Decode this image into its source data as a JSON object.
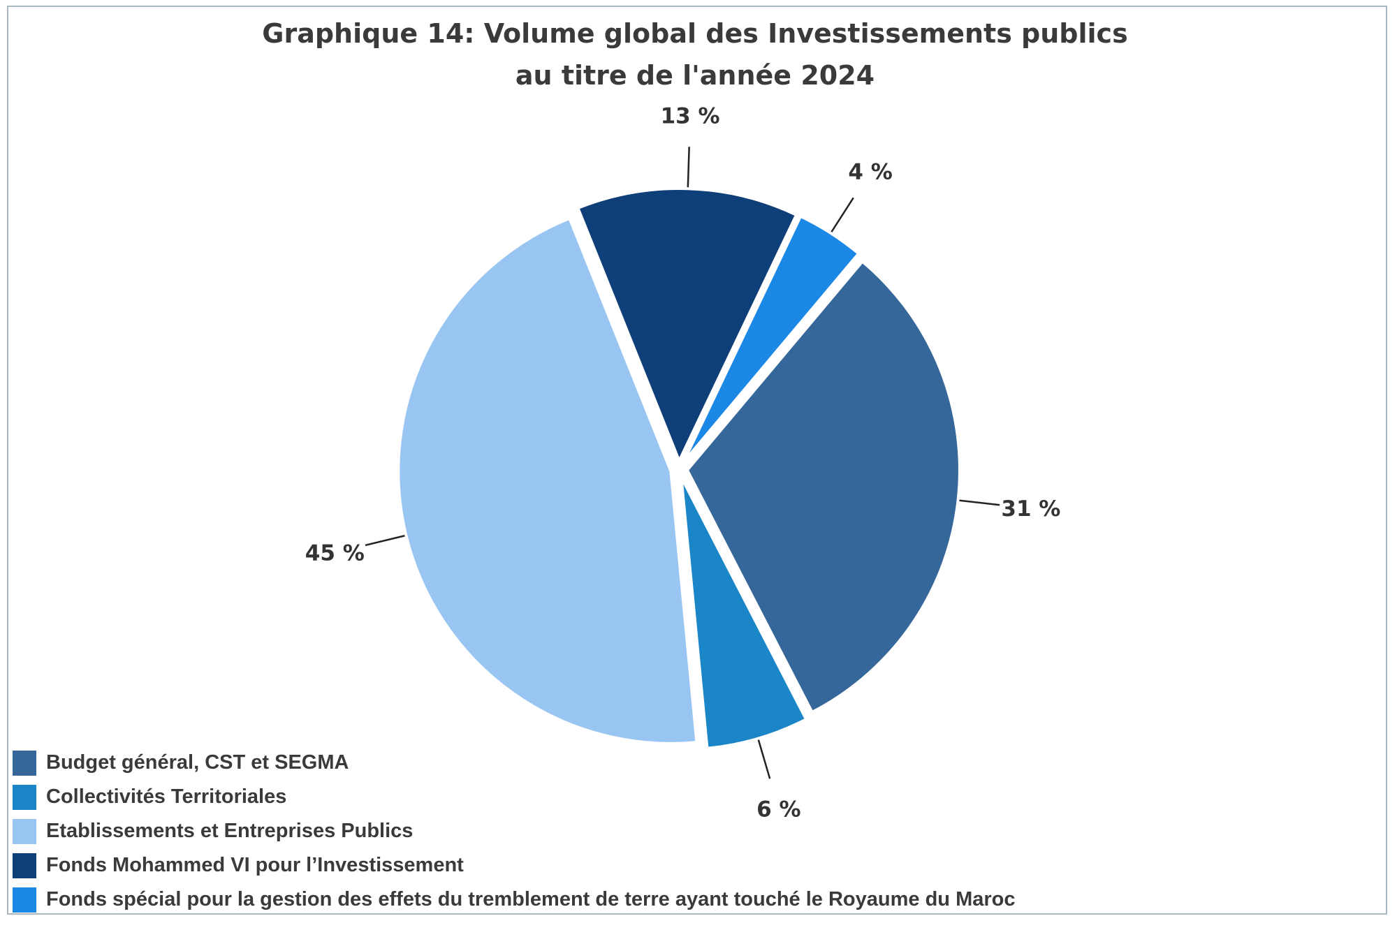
{
  "chart_data": {
    "type": "pie",
    "title_lines": [
      "Graphique 14: Volume global des Investissements publics",
      "au titre de l'année 2024"
    ],
    "categories": [
      "Budget général, CST et SEGMA",
      "Collectivités Territoriales",
      "Etablissements et Entreprises Publics",
      "Fonds Mohammed VI pour l’Investissement",
      "Fonds spécial pour la gestion des effets du tremblement de terre ayant touché le Royaume du Maroc"
    ],
    "values": [
      31,
      6,
      45,
      13,
      4
    ],
    "labels": [
      "31 %",
      "6 %",
      "45 %",
      "13 %",
      "4 %"
    ],
    "colors": [
      "#35679a",
      "#1a86c8",
      "#99c5f3",
      "#0f3f78",
      "#1c88e6"
    ],
    "exploded": true,
    "legend_position": "bottom-left"
  }
}
